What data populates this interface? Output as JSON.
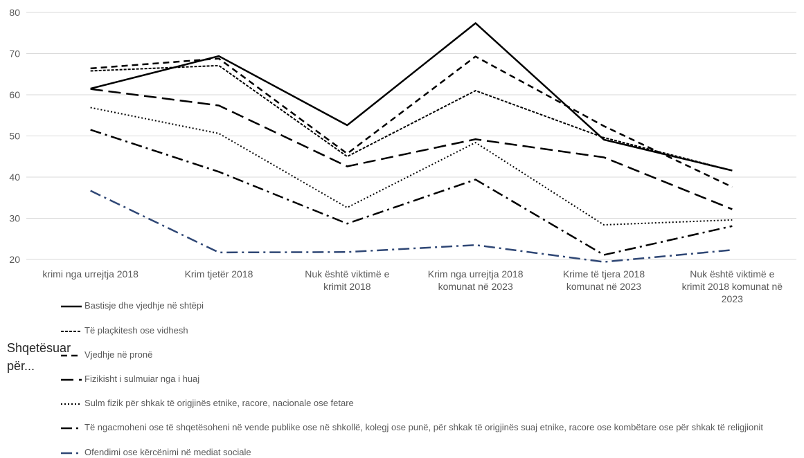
{
  "side_label": "Shqetësuar për...",
  "chart_data": {
    "type": "line",
    "categories": [
      "krimi nga urrejtja 2018",
      "Krim tjetër 2018",
      "Nuk është viktimë e krimit 2018",
      "Krim nga urrejtja 2018 komunat në 2023",
      "Krime të tjera 2018 komunat në 2023",
      "Nuk është viktimë e krimit 2018 komunat në 2023"
    ],
    "ylim": [
      20,
      80
    ],
    "yticks": [
      20,
      30,
      40,
      50,
      60,
      70,
      80
    ],
    "grid": true,
    "legend_position": "bottom",
    "series": [
      {
        "name": "Bastisje dhe vjedhje në shtëpi",
        "values": [
          61.5,
          69.4,
          52.6,
          77.4,
          49.1,
          41.6
        ],
        "color": "#000000",
        "style": "solid"
      },
      {
        "name": "Të plaçkitesh ose vidhesh",
        "values": [
          65.8,
          67.1,
          45.0,
          61.0,
          49.6,
          41.6
        ],
        "color": "#000000",
        "style": "short-dash"
      },
      {
        "name": "Vjedhje në pronë",
        "values": [
          66.4,
          68.8,
          45.7,
          69.3,
          52.4,
          37.6
        ],
        "color": "#000000",
        "style": "dash"
      },
      {
        "name": "Fizikisht i sulmuiar nga i huaj",
        "values": [
          61.4,
          57.4,
          42.6,
          49.2,
          44.8,
          32.2
        ],
        "color": "#000000",
        "style": "long-dash"
      },
      {
        "name": "Sulm fizik për shkak të origjinës etnike, racore, nacionale ose fetare",
        "values": [
          56.9,
          50.6,
          32.6,
          48.4,
          28.4,
          29.6
        ],
        "color": "#000000",
        "style": "dot"
      },
      {
        "name": "Të ngacmoheni ose të shqetësoheni në vende publike ose në shkollë, kolegj ose punë, për shkak të origjinës suaj etnike, racore ose kombëtare ose për shkak të religjionit",
        "values": [
          51.5,
          41.3,
          28.7,
          39.4,
          21.1,
          28.1
        ],
        "color": "#000000",
        "style": "long-dash-dot"
      },
      {
        "name": "Ofendimi ose kërcënimi në mediat sociale",
        "values": [
          36.7,
          21.7,
          21.8,
          23.5,
          19.4,
          22.3
        ],
        "color": "#2f4775",
        "style": "long-dash-dot"
      }
    ]
  }
}
